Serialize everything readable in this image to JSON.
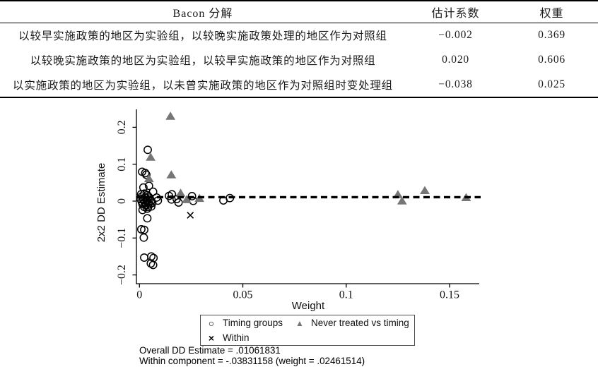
{
  "table": {
    "header": {
      "col1": "Bacon 分解",
      "col2": "估计系数",
      "col3": "权重"
    },
    "rows": [
      {
        "label": "以较早实施政策的地区为实验组，以较晚实施政策处理的地区作为对照组",
        "coef": "−0.002",
        "weight": "0.369"
      },
      {
        "label": "以较晚实施政策的地区为实验组，以较早实施政策的地区作为对照组",
        "coef": "0.020",
        "weight": "0.606"
      },
      {
        "label": "以实施政策的地区为实验组，以未曾实施政策的地区作为对照组时变处理组",
        "coef": "−0.038",
        "weight": "0.025"
      }
    ]
  },
  "chart_data": {
    "type": "scatter",
    "xlabel": "Weight",
    "ylabel": "2x2 DD Estimate",
    "xlim": [
      -0.0015,
      0.168
    ],
    "ylim": [
      -0.224,
      0.245
    ],
    "x_ticks": [
      0,
      0.05,
      0.1,
      0.15
    ],
    "x_tick_labels": [
      "0",
      "0.05",
      "0.1",
      "0.15"
    ],
    "y_ticks": [
      -0.2,
      -0.1,
      0,
      0.1,
      0.2
    ],
    "y_tick_labels": [
      "−0.2",
      "−0.1",
      "0",
      "0.1",
      "0.2"
    ],
    "grid": false,
    "legend_position": "below",
    "reference_line": {
      "y": 0.0106,
      "style": "dashed",
      "color": "#000000"
    },
    "series": [
      {
        "name": "Timing groups",
        "marker": "circle",
        "color": "#000000",
        "points": [
          [
            0.004,
            0.139
          ],
          [
            0.0013,
            0.0795
          ],
          [
            0.0028,
            0.076
          ],
          [
            0.0033,
            0.0715
          ],
          [
            0.0019,
            0.037
          ],
          [
            0.0046,
            0.0415
          ],
          [
            0.0066,
            0.0254
          ],
          [
            0.0008,
            0.0185
          ],
          [
            0.0024,
            0.0205
          ],
          [
            0.0038,
            0.016
          ],
          [
            0.0012,
            0.0125
          ],
          [
            0.0027,
            0.01
          ],
          [
            0.0044,
            0.012
          ],
          [
            0.0006,
            0.0055
          ],
          [
            0.0019,
            0.004
          ],
          [
            0.0034,
            0.0025
          ],
          [
            0.005,
            0.007
          ],
          [
            0.0011,
            -0.0015
          ],
          [
            0.0026,
            -0.0035
          ],
          [
            0.0043,
            -0.0045
          ],
          [
            0.0057,
            0.0005
          ],
          [
            0.0015,
            -0.0085
          ],
          [
            0.0031,
            -0.0105
          ],
          [
            0.0049,
            -0.009
          ],
          [
            0.0062,
            -0.005
          ],
          [
            0.0023,
            -0.0155
          ],
          [
            0.0042,
            -0.016
          ],
          [
            0.0057,
            -0.0145
          ],
          [
            0.0083,
            0.0096
          ],
          [
            0.0089,
            0.0013
          ],
          [
            0.0015,
            -0.024
          ],
          [
            0.0038,
            -0.0205
          ],
          [
            0.0143,
            0.014
          ],
          [
            0.0157,
            0.0185
          ],
          [
            0.0155,
            0.0044
          ],
          [
            0.018,
            0.0057
          ],
          [
            0.0189,
            -0.0038
          ],
          [
            0.0254,
            0.0134
          ],
          [
            0.026,
            0.0006
          ],
          [
            0.0406,
            0.0019
          ],
          [
            0.0437,
            0.0082
          ],
          [
            0.0038,
            -0.0465
          ],
          [
            0.0009,
            -0.0765
          ],
          [
            0.0023,
            -0.0778
          ],
          [
            0.0021,
            -0.0988
          ],
          [
            0.0023,
            -0.153
          ],
          [
            0.0057,
            -0.15
          ],
          [
            0.0068,
            -0.154
          ],
          [
            0.0055,
            -0.169
          ],
          [
            0.0066,
            -0.173
          ]
        ]
      },
      {
        "name": "Never treated vs timing",
        "marker": "triangle",
        "color": "#767676",
        "points": [
          [
            0.015,
            0.23
          ],
          [
            0.0054,
            0.119
          ],
          [
            0.0046,
            0.061
          ],
          [
            0.0154,
            0.0713
          ],
          [
            0.0199,
            0.0216
          ],
          [
            0.0228,
            0.004
          ],
          [
            0.029,
            0.0075
          ],
          [
            0.125,
            0.0178
          ],
          [
            0.127,
            0.0005
          ],
          [
            0.138,
            0.0287
          ],
          [
            0.158,
            0.0096
          ]
        ]
      },
      {
        "name": "Within",
        "marker": "x",
        "color": "#000000",
        "points": [
          [
            0.0246,
            -0.0383
          ]
        ]
      }
    ],
    "notes": [
      "Overall DD Estimate = .01061831",
      "Within component = -.03831158 (weight = .02461514)"
    ]
  }
}
